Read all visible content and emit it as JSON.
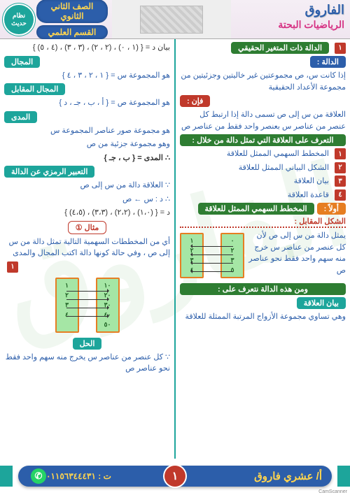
{
  "watermark": "الفاروق",
  "header": {
    "title1": "الفاروق",
    "title2": "الرياضيات البحتة",
    "grade": "الصف الثاني الثانوي",
    "section": "القسم العلمي",
    "badge": "نظام حديث"
  },
  "right_col": {
    "h1_num": "١",
    "h1": "الدالة ذات المتغير الحقيقي",
    "lbl_def": "الدالة :",
    "def": "إذا كانت س، ص مجموعتين غير خاليتين وجزئيتين من مجموعة الأعداد الحقيقية",
    "lbl_fan": "فإن :",
    "fan": "العلاقة من س إلى ص تسمى دالة إذا ارتبط كل عنصر من عناصر س بعنصر واحد فقط من عناصر ص",
    "lbl_rec": "التعرف على العلاقة التي تمثل دالة من خلال :",
    "items": [
      "المخطط السهمي الممثل للعلاقة",
      "الشكل البياني الممثل للعلاقة",
      "بيان العلاقة",
      "قاعدة العلاقة"
    ],
    "first_lbl": "أولاً :",
    "first_txt": "المخطط السهمي الممثل للعلاقة",
    "shape_lbl": "الشكل المقابل :",
    "shape_txt": "يمثل دالة من س إلى ص لأن كل عنصر من عناصر س خرج منه سهم واحد فقط نحو عناصر ص",
    "d1": {
      "left": [
        "٠",
        "٢",
        "٣",
        "٥"
      ],
      "right": [
        "١",
        "٢",
        "٣",
        "٤"
      ]
    },
    "from_lbl": "ومن هذه الدالة نتعرف على :",
    "rel_lbl": "بيان العلاقة",
    "rel_txt": "وهي تساوي مجموعة الأزواج المرتبة الممثلة للعلاقة"
  },
  "left_col": {
    "bayan": "بيان د = { (١ ، ٠) ، (٢ ، ٢) ، (٣ ، ٣) ، (٤ ، ٥) }",
    "domain_lbl": "المجال",
    "domain_txt": "هو المجموعة س = { ١ ، ٢ ، ٣ ، ٤ }",
    "codomain_lbl": "المجال المقابل",
    "codomain_txt": "هو المجموعة ص = { أ ، ب ، جـ ، د }",
    "range_lbl": "المدى",
    "range_txt1": "هو مجموعة صور عناصر المجموعة س",
    "range_txt2": "وهو مجموعة جزئية من ص",
    "range_eq": "∴ المدى = { ب ، جـ }",
    "symbolic_lbl": "التعبير الرمزي عن الدالة",
    "sym1": "∵ العلاقة دالة من س إلى ص",
    "sym2": "∴ د : س ← ص",
    "sym3": "د = { (١،٠) ، (٢،٢) ، (٣،٣) ، (٤،٥) }",
    "ex_lbl": "مثال ①",
    "ex_txt": "أي من المخططات السهمية التالية تمثل دالة من س إلى ص ، وفي حالة كونها دالة اكتب المجال والمدى",
    "ex_num": "١",
    "d2": {
      "left": [
        "١٠",
        "٢٠",
        "٣٠",
        "٤٠",
        "٥٠"
      ],
      "right": [
        "١",
        "٢",
        "٣",
        "٤"
      ]
    },
    "sol_lbl": "الحل",
    "sol_txt": "∵ كل عنصر من عناصر س يخرج منه سهم واحد فقط نحو عناصر ص"
  },
  "footer": {
    "author": "أ/ عشري فاروق",
    "phone": "ت : ٠١١٥٦٣٤٤٤٣١",
    "page": "١"
  },
  "scan": "CamScanner"
}
